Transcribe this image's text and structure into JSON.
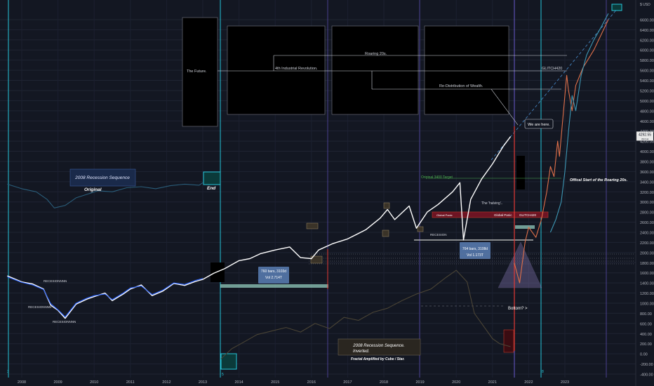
{
  "chart_data": {
    "type": "line",
    "currency": "USD",
    "y_axis": {
      "ticks": [
        "6600.00",
        "6400.00",
        "6200.00",
        "6000.00",
        "5800.00",
        "5600.00",
        "5400.00",
        "5200.00",
        "5000.00",
        "4800.00",
        "4600.00",
        "4400.00",
        "4200.00",
        "4000.00",
        "3800.00",
        "3600.00",
        "3400.00",
        "3200.00",
        "3000.00",
        "2800.00",
        "2600.00",
        "2400.00",
        "2200.00",
        "2000.00",
        "1800.00",
        "1600.00",
        "1400.00",
        "1200.00",
        "1000.00",
        "800.00",
        "600.00",
        "400.00",
        "200.00",
        "0.00",
        "-200.00",
        "-400.00"
      ],
      "ylim": [
        -400,
        6800
      ]
    },
    "x_axis": {
      "ticks": [
        "2008",
        "2009",
        "2010",
        "2011",
        "2012",
        "2013",
        "2014",
        "2015",
        "2016",
        "2017",
        "2018",
        "2019",
        "2020",
        "2021",
        "2022",
        "2023"
      ]
    },
    "price_label": {
      "price": "4292.55",
      "sub": "29:14"
    },
    "series": [
      {
        "name": "",
        "color": "#ffffff",
        "points": [
          [
            2007.6,
            1540
          ],
          [
            2008.0,
            1420
          ],
          [
            2008.3,
            1380
          ],
          [
            2008.6,
            1280
          ],
          [
            2008.8,
            960
          ],
          [
            2009.0,
            860
          ],
          [
            2009.2,
            700
          ],
          [
            2009.5,
            980
          ],
          [
            2009.8,
            1080
          ],
          [
            2010.0,
            1130
          ],
          [
            2010.3,
            1200
          ],
          [
            2010.5,
            1050
          ],
          [
            2010.8,
            1180
          ],
          [
            2011.0,
            1280
          ],
          [
            2011.3,
            1360
          ],
          [
            2011.6,
            1150
          ],
          [
            2011.9,
            1240
          ],
          [
            2012.2,
            1390
          ],
          [
            2012.5,
            1350
          ],
          [
            2012.8,
            1430
          ],
          [
            2013.0,
            1470
          ],
          [
            2013.3,
            1590
          ],
          [
            2013.6,
            1680
          ],
          [
            2014.0,
            1840
          ],
          [
            2014.3,
            1880
          ],
          [
            2014.6,
            1980
          ],
          [
            2015.0,
            2050
          ],
          [
            2015.4,
            2110
          ],
          [
            2015.7,
            1900
          ],
          [
            2016.0,
            1880
          ],
          [
            2016.2,
            2050
          ],
          [
            2016.6,
            2180
          ],
          [
            2017.0,
            2270
          ],
          [
            2017.5,
            2450
          ],
          [
            2017.9,
            2680
          ],
          [
            2018.1,
            2850
          ],
          [
            2018.3,
            2650
          ],
          [
            2018.7,
            2920
          ],
          [
            2018.9,
            2480
          ],
          [
            2019.2,
            2800
          ],
          [
            2019.5,
            2950
          ],
          [
            2019.9,
            3200
          ],
          [
            2020.1,
            3380
          ],
          [
            2020.2,
            2250
          ],
          [
            2020.4,
            3050
          ],
          [
            2020.7,
            3450
          ],
          [
            2021.0,
            3750
          ],
          [
            2021.3,
            4100
          ],
          [
            2021.5,
            4290
          ]
        ]
      },
      {
        "name": "",
        "color": "#2962ff",
        "points": [
          [
            2007.6,
            1520
          ],
          [
            2008.0,
            1410
          ],
          [
            2008.3,
            1360
          ],
          [
            2008.6,
            1270
          ],
          [
            2008.8,
            990
          ],
          [
            2009.0,
            870
          ],
          [
            2009.2,
            730
          ],
          [
            2009.5,
            1000
          ],
          [
            2009.8,
            1100
          ],
          [
            2010.0,
            1150
          ],
          [
            2010.3,
            1180
          ],
          [
            2010.5,
            1070
          ],
          [
            2010.8,
            1200
          ],
          [
            2011.0,
            1300
          ],
          [
            2011.3,
            1340
          ],
          [
            2011.6,
            1170
          ],
          [
            2011.9,
            1260
          ],
          [
            2012.2,
            1400
          ],
          [
            2012.5,
            1370
          ],
          [
            2012.8,
            1450
          ],
          [
            2013.0,
            1490
          ]
        ]
      },
      {
        "name": "",
        "color": "#2a5d7a",
        "points": [
          [
            2007.6,
            3350
          ],
          [
            2008.0,
            3260
          ],
          [
            2008.4,
            3200
          ],
          [
            2008.7,
            3050
          ],
          [
            2008.9,
            2880
          ],
          [
            2009.2,
            2930
          ],
          [
            2009.5,
            3080
          ],
          [
            2009.8,
            3150
          ],
          [
            2010.1,
            3220
          ],
          [
            2010.5,
            3200
          ],
          [
            2010.9,
            3280
          ],
          [
            2011.3,
            3300
          ],
          [
            2011.7,
            3260
          ],
          [
            2012.1,
            3320
          ],
          [
            2012.5,
            3350
          ],
          [
            2012.9,
            3330
          ],
          [
            2013.0,
            3380
          ]
        ]
      },
      {
        "name": "",
        "color": "#4a4435",
        "points": [
          [
            2013.5,
            -100
          ],
          [
            2013.8,
            100
          ],
          [
            2014.1,
            220
          ],
          [
            2014.5,
            380
          ],
          [
            2014.9,
            450
          ],
          [
            2015.3,
            520
          ],
          [
            2015.7,
            430
          ],
          [
            2016.1,
            600
          ],
          [
            2016.5,
            500
          ],
          [
            2016.9,
            720
          ],
          [
            2017.3,
            660
          ],
          [
            2017.7,
            820
          ],
          [
            2018.1,
            900
          ],
          [
            2018.5,
            1050
          ],
          [
            2018.9,
            1180
          ],
          [
            2019.3,
            1280
          ],
          [
            2019.7,
            1500
          ],
          [
            2020.0,
            1650
          ],
          [
            2020.3,
            1420
          ],
          [
            2020.5,
            800
          ],
          [
            2020.8,
            500
          ],
          [
            2021.0,
            300
          ],
          [
            2021.2,
            200
          ],
          [
            2021.5,
            140
          ]
        ]
      },
      {
        "name": "",
        "color": "#e0704a",
        "points": [
          [
            2021.6,
            1800
          ],
          [
            2021.75,
            1400
          ],
          [
            2021.9,
            2200
          ],
          [
            2022.0,
            2500
          ],
          [
            2022.2,
            2300
          ],
          [
            2022.35,
            2650
          ],
          [
            2022.5,
            3200
          ],
          [
            2022.6,
            3700
          ],
          [
            2022.7,
            3500
          ],
          [
            2022.8,
            4200
          ],
          [
            2022.85,
            3900
          ],
          [
            2023.0,
            5100
          ],
          [
            2023.05,
            5500
          ],
          [
            2023.1,
            5200
          ],
          [
            2023.2,
            4800
          ],
          [
            2023.3,
            5300
          ],
          [
            2023.5,
            5650
          ],
          [
            2023.8,
            6000
          ],
          [
            2024.0,
            6300
          ],
          [
            2024.2,
            6600
          ]
        ]
      },
      {
        "name": "",
        "color": "#3d97b4",
        "points": [
          [
            2022.6,
            2400
          ],
          [
            2022.75,
            2650
          ],
          [
            2022.9,
            3000
          ],
          [
            2023.0,
            3600
          ],
          [
            2023.1,
            4400
          ],
          [
            2023.2,
            5100
          ],
          [
            2023.3,
            4800
          ],
          [
            2023.45,
            5500
          ],
          [
            2023.6,
            5900
          ],
          [
            2023.8,
            6200
          ],
          [
            2024.0,
            6450
          ],
          [
            2024.2,
            6720
          ]
        ]
      }
    ],
    "annotations": {
      "title_box": "2008 Recession Sequence",
      "original": "Original",
      "end": "End",
      "recession_1": "RECESIONNNN",
      "recession_2": "RECESIONNNN",
      "recession_3": "RECESIONNNN",
      "recession_4": "RECESION",
      "future": "The Future.",
      "industrial": "4th Industrial Revolution.",
      "roaring": "Roaring 20s.",
      "redistribution": "Re-Distribution of Wealth.",
      "glitch": "GLITCH420",
      "glitch_small": "GLITCH420",
      "we_are_here": "We are here.",
      "original_target": "Original 3400 Target",
      "halving": "The 'halving'..",
      "global_panic_1": "Global Panic",
      "global_panic_2": "Global Panic",
      "bars_1": "760 bars, 3103d",
      "vol_1": "Vol 2.714T",
      "bars_2": "764 bars, 3108d",
      "vol_2": "Vol 1.173T",
      "bottom": "Bottom? >",
      "roaring_start": "Offical Start of the Roaring 20s.",
      "inverted_1": "2008 Recession Sequence.",
      "inverted_2": "Inverted.",
      "fractal": "Fractal Amplified by Cube / Star.",
      "num_3": "3",
      "num_5": "5",
      "num_8": "8"
    },
    "grid": true
  }
}
